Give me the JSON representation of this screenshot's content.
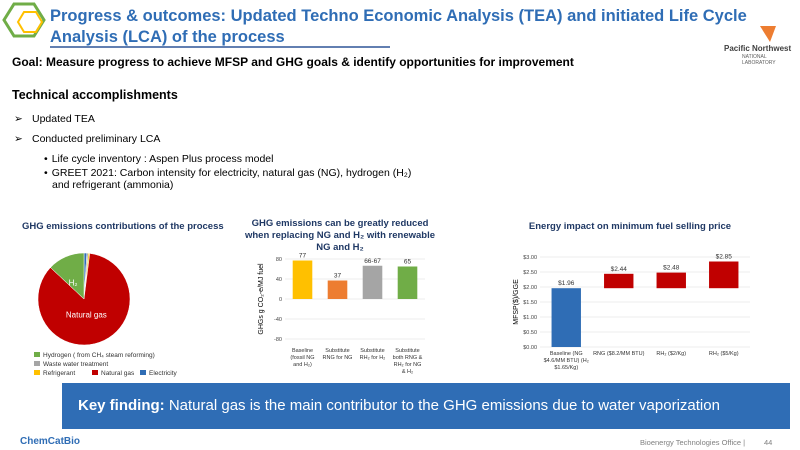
{
  "header": {
    "title": "Progress & outcomes: Updated Techno Economic Analysis (TEA) and initiated Life Cycle Analysis (LCA) of the process",
    "goal": "Goal: Measure progress to achieve MFSP and GHG goals & identify opportunities for improvement",
    "logo_name": "Pacific Northwest",
    "logo_sub": "NATIONAL LABORATORY"
  },
  "accomplishments": {
    "heading": "Technical accomplishments",
    "bullets": [
      "Updated TEA",
      "Conducted preliminary LCA"
    ],
    "sub_bullets": [
      "Life cycle inventory : Aspen Plus process model",
      "GREET 2021: Carbon intensity for electricity, natural gas (NG), hydrogen (H₂) and refrigerant (ammonia)"
    ]
  },
  "chart_data": [
    {
      "type": "pie",
      "title": "GHG emissions contributions of the process",
      "series": [
        {
          "name": "Electricity",
          "color": "#2f6db5",
          "value": 1,
          "label": null
        },
        {
          "name": "Waste water treatment",
          "color": "#a5a5a5",
          "value": 0.5,
          "label": null
        },
        {
          "name": "Refrigerant",
          "color": "#ffc000",
          "value": 0.5,
          "label": null
        },
        {
          "name": "Natural gas",
          "color": "#c00000",
          "value": 85,
          "label": "Natural gas"
        },
        {
          "name": "Hydrogen ( from CH₄ steam reforming)",
          "color": "#70ad47",
          "value": 13,
          "label": "H₂"
        }
      ]
    },
    {
      "type": "bar",
      "title": "GHG emissions can be greatly reduced when replacing NG and H₂ with renewable NG and H₂",
      "ylabel": "GHGs g CO₂-e/MJ fuel",
      "categories": [
        "Baseline (fossil NG and H₂)",
        "Substitute RNG for NG",
        "Substitute RH₂ for H₂",
        "Substitute both RNG & RH₂ for NG & H₂"
      ],
      "values": [
        77,
        37,
        66.5,
        65
      ],
      "value_labels": [
        "77",
        "37",
        "66-67",
        "65"
      ],
      "colors": [
        "#ffc000",
        "#ed7d31",
        "#a5a5a5",
        "#70ad47"
      ],
      "ylim": [
        -90,
        90
      ],
      "yticks": [
        -80,
        -40,
        0,
        40,
        80
      ]
    },
    {
      "type": "bar",
      "title": "Energy impact on minimum fuel selling price",
      "ylabel": "MFSP($)/GGE",
      "categories": [
        "Baseline (NG $4.6/MM BTU) (H₂ $1.65/Kg)",
        "RNG ($8.2/MM BTU)",
        "RH₂ ($2/Kg)",
        "RH₂ ($5/Kg)"
      ],
      "values": [
        1.96,
        2.44,
        2.48,
        2.85
      ],
      "value_labels": [
        "$1.96",
        "$2.44",
        "$2.48",
        "$2.85"
      ],
      "colors": [
        "#2f6db5",
        "#c00000",
        "#c00000",
        "#c00000"
      ],
      "ylim": [
        0,
        3
      ],
      "yticks": [
        {
          "value": 0,
          "label": "$0.00"
        },
        {
          "value": 0.5,
          "label": "$0.50"
        },
        {
          "value": 1,
          "label": "$1.00"
        },
        {
          "value": 1.5,
          "label": "$1.50"
        },
        {
          "value": 2,
          "label": "$2.00"
        },
        {
          "value": 2.5,
          "label": "$2.50"
        },
        {
          "value": 3,
          "label": "$3.00"
        }
      ]
    }
  ],
  "key_finding": {
    "label": "Key finding:",
    "text": "Natural gas is the main contributor to the GHG emissions due to water vaporization"
  },
  "footer": {
    "brand": "ChemCatBio",
    "office": "Bioenergy Technologies Office |",
    "page": "44"
  }
}
